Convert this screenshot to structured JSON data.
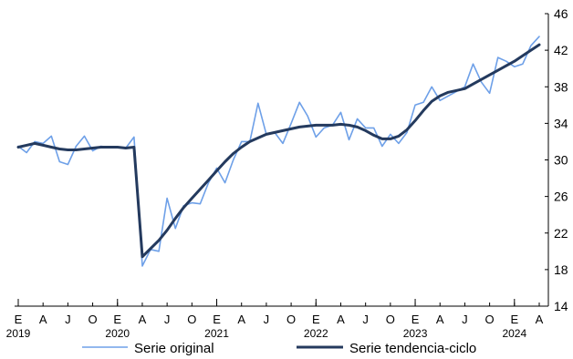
{
  "chart_data": {
    "type": "line",
    "title": "",
    "xlabel": "",
    "ylabel": "",
    "ylim": [
      14,
      46
    ],
    "y_ticks": [
      14,
      18,
      22,
      26,
      30,
      34,
      38,
      42,
      46
    ],
    "y_axis_side": "right",
    "grid": false,
    "legend_position": "bottom",
    "x_tick_labels": [
      "E",
      "A",
      "J",
      "O",
      "E",
      "A",
      "J",
      "O",
      "E",
      "A",
      "J",
      "O",
      "E",
      "A",
      "J",
      "O",
      "E",
      "A",
      "J",
      "O",
      "E",
      "A"
    ],
    "x_year_labels": [
      "2019",
      "2020",
      "2021",
      "2022",
      "2023",
      "2024"
    ],
    "x_months": [
      "2019-01",
      "2019-02",
      "2019-03",
      "2019-04",
      "2019-05",
      "2019-06",
      "2019-07",
      "2019-08",
      "2019-09",
      "2019-10",
      "2019-11",
      "2019-12",
      "2020-01",
      "2020-02",
      "2020-03",
      "2020-04",
      "2020-05",
      "2020-06",
      "2020-07",
      "2020-08",
      "2020-09",
      "2020-10",
      "2020-11",
      "2020-12",
      "2021-01",
      "2021-02",
      "2021-03",
      "2021-04",
      "2021-05",
      "2021-06",
      "2021-07",
      "2021-08",
      "2021-09",
      "2021-10",
      "2021-11",
      "2021-12",
      "2022-01",
      "2022-02",
      "2022-03",
      "2022-04",
      "2022-05",
      "2022-06",
      "2022-07",
      "2022-08",
      "2022-09",
      "2022-10",
      "2022-11",
      "2022-12",
      "2023-01",
      "2023-02",
      "2023-03",
      "2023-04",
      "2023-05",
      "2023-06",
      "2023-07",
      "2023-08",
      "2023-09",
      "2023-10",
      "2023-11",
      "2023-12",
      "2024-01",
      "2024-02",
      "2024-03",
      "2024-04"
    ],
    "series": [
      {
        "name": "Serie original",
        "color": "#6ea0e8",
        "values": [
          31.5,
          30.8,
          32.0,
          31.8,
          32.6,
          29.8,
          29.5,
          31.5,
          32.6,
          31.0,
          31.5,
          31.4,
          31.4,
          31.3,
          32.5,
          18.4,
          20.2,
          20.0,
          25.8,
          22.5,
          25.0,
          25.3,
          25.2,
          27.5,
          29.1,
          27.5,
          30.0,
          32.0,
          32.0,
          36.2,
          32.8,
          33.0,
          31.8,
          34.0,
          36.3,
          34.8,
          32.5,
          33.5,
          33.8,
          35.2,
          32.2,
          34.5,
          33.5,
          33.5,
          31.5,
          32.8,
          31.8,
          33.0,
          36.0,
          36.3,
          38.0,
          36.5,
          37.0,
          37.5,
          38.0,
          40.5,
          38.5,
          37.3,
          41.2,
          40.8,
          40.2,
          40.5,
          42.5,
          43.5
        ]
      },
      {
        "name": "Serie tendencia-ciclo",
        "color": "#243a5e",
        "values": [
          31.4,
          31.6,
          31.8,
          31.6,
          31.4,
          31.2,
          31.1,
          31.1,
          31.2,
          31.3,
          31.4,
          31.4,
          31.4,
          31.3,
          31.4,
          19.4,
          20.3,
          21.2,
          22.3,
          23.6,
          24.8,
          25.8,
          26.8,
          27.8,
          28.8,
          29.8,
          30.7,
          31.4,
          32.0,
          32.4,
          32.8,
          33.0,
          33.2,
          33.4,
          33.6,
          33.7,
          33.8,
          33.8,
          33.8,
          33.9,
          33.8,
          33.6,
          33.2,
          32.7,
          32.3,
          32.3,
          32.6,
          33.3,
          34.3,
          35.4,
          36.4,
          37.0,
          37.4,
          37.6,
          37.8,
          38.3,
          38.8,
          39.3,
          39.8,
          40.3,
          40.8,
          41.4,
          42.0,
          42.6
        ]
      }
    ]
  }
}
